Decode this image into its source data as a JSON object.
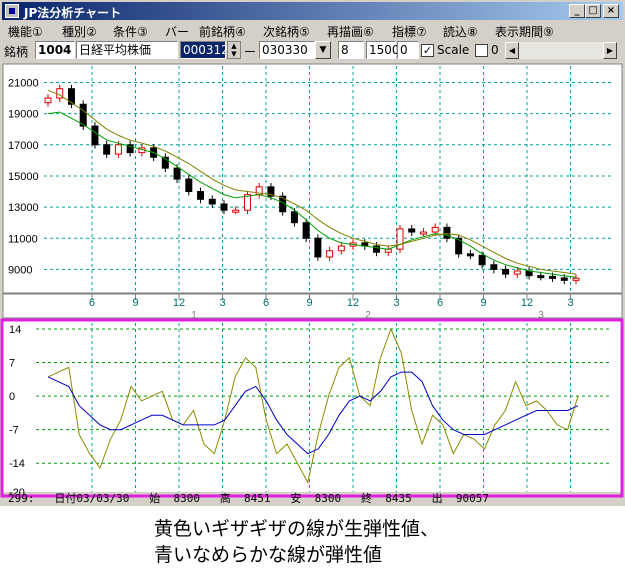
{
  "window": {
    "title": "JP法分析チャート",
    "buttons": [
      "_",
      "□",
      "×"
    ]
  },
  "menu": [
    "機能①",
    "種別②",
    "条件③",
    "バー",
    "前銘柄④",
    "次銘柄⑤",
    "再描画⑥",
    "指標⑦",
    "読込⑧",
    "表示期間⑨"
  ],
  "toolbar": {
    "label": "銘柄",
    "code": "1004",
    "name": "日経平均株価",
    "date_from": "000312",
    "separator": "ー",
    "date_to": "030330",
    "param1": "8",
    "param2": "1500",
    "param3": "0",
    "scale_label": "Scale",
    "scale_checked": true,
    "zero_label": "0",
    "zero_checked": false
  },
  "price_chart": {
    "y_ticks": [
      "21000",
      "19000",
      "17000",
      "15000",
      "13000",
      "11000",
      "9000"
    ],
    "x_ticks": [
      "6",
      "9",
      "12",
      "3",
      "6",
      "9",
      "12",
      "3",
      "6",
      "9",
      "12",
      "3"
    ],
    "year_marks": [
      "1",
      "2",
      "3"
    ]
  },
  "chart_data": [
    {
      "type": "line",
      "title": "",
      "ylim": [
        8000,
        21800
      ],
      "y_ticks": [
        21000,
        19000,
        17000,
        15000,
        13000,
        11000,
        9000
      ],
      "series": [
        {
          "values": [
            20000,
            20600,
            19600,
            18200,
            17000,
            16400,
            17000,
            16500,
            16800,
            16200,
            15500,
            14800,
            14000,
            13500,
            13200,
            12800,
            12800,
            13800,
            14300,
            13700,
            12700,
            12000,
            11000,
            9800,
            10200,
            10500,
            10700,
            10500,
            10100,
            10300,
            11600,
            11400,
            11400,
            11700,
            11000,
            10000,
            9900,
            9300,
            9000,
            8700,
            8900,
            8600,
            8550,
            8450,
            8300,
            8435
          ]
        },
        {
          "values": [
            19000,
            19100,
            18700,
            18300,
            17800,
            17300,
            17100,
            16900,
            16700,
            16500,
            16100,
            15600,
            15100,
            14600,
            14200,
            13800,
            13600,
            13700,
            13800,
            13600,
            13300,
            12800,
            12200,
            11500,
            11000,
            10700,
            10600,
            10500,
            10400,
            10300,
            10600,
            10900,
            11100,
            11300,
            11200,
            10900,
            10500,
            10000,
            9600,
            9300,
            9100,
            8900,
            8800,
            8700,
            8600,
            8500
          ]
        },
        {
          "values": [
            20500,
            20200,
            19700,
            19200,
            18600,
            18000,
            17600,
            17300,
            17100,
            16900,
            16600,
            16200,
            15800,
            15300,
            14800,
            14400,
            14100,
            14000,
            13900,
            13800,
            13600,
            13200,
            12800,
            12200,
            11700,
            11300,
            11000,
            10800,
            10600,
            10500,
            10600,
            10800,
            11000,
            11200,
            11300,
            11200,
            10900,
            10500,
            10100,
            9700,
            9400,
            9200,
            9000,
            8900,
            8800,
            8700
          ]
        }
      ]
    },
    {
      "type": "line",
      "title": "",
      "ylim": [
        -20,
        14
      ],
      "y_ticks": [
        14,
        7,
        0,
        -7,
        -14,
        -20
      ],
      "series": [
        {
          "color": "#8b8b00",
          "values": [
            4,
            5,
            6,
            -8,
            -12,
            -15,
            -9,
            -5,
            2,
            -1,
            0,
            1,
            -5,
            -6,
            -3,
            -10,
            -12,
            -5,
            4,
            8,
            6,
            -5,
            -12,
            -10,
            -14,
            -18,
            -8,
            0,
            6,
            8,
            0,
            -2,
            8,
            14,
            9,
            -3,
            -10,
            -4,
            -6,
            -12,
            -8,
            -9,
            -11,
            -6,
            -3,
            3,
            -2,
            -1,
            -3,
            -6,
            -7,
            0
          ]
        },
        {
          "color": "#0000cc",
          "values": [
            4,
            3,
            2,
            -2,
            -4,
            -6,
            -7,
            -7,
            -6,
            -5,
            -4,
            -4,
            -5,
            -6,
            -6,
            -6,
            -6,
            -5,
            -2,
            1,
            2,
            -1,
            -5,
            -8,
            -10,
            -12,
            -11,
            -8,
            -4,
            -1,
            0,
            -1,
            1,
            4,
            5,
            5,
            3,
            -2,
            -5,
            -7,
            -8,
            -8,
            -8,
            -7,
            -6,
            -5,
            -4,
            -3,
            -3,
            -3,
            -3,
            -2
          ]
        }
      ]
    }
  ],
  "oscillator_chart": {
    "y_ticks": [
      "14",
      "7",
      "0",
      "-7",
      "-14",
      "-20"
    ]
  },
  "status": "299:   日付03/03/30   始  8300   高  8451   安  8300   終  8435   出  90057",
  "caption": {
    "line1": "黄色いギザギザの線が生弾性値、",
    "line2": "青いなめらかな線が弾性値"
  },
  "colors": {
    "highlight_border": "#e020e0",
    "grid": "#00a0a0",
    "up_candle": "#e00000",
    "down_candle": "#000000",
    "ma_short": "#00a000",
    "ma_long": "#808000",
    "raw_elasticity": "#8b8b00",
    "elasticity": "#0000cc"
  }
}
